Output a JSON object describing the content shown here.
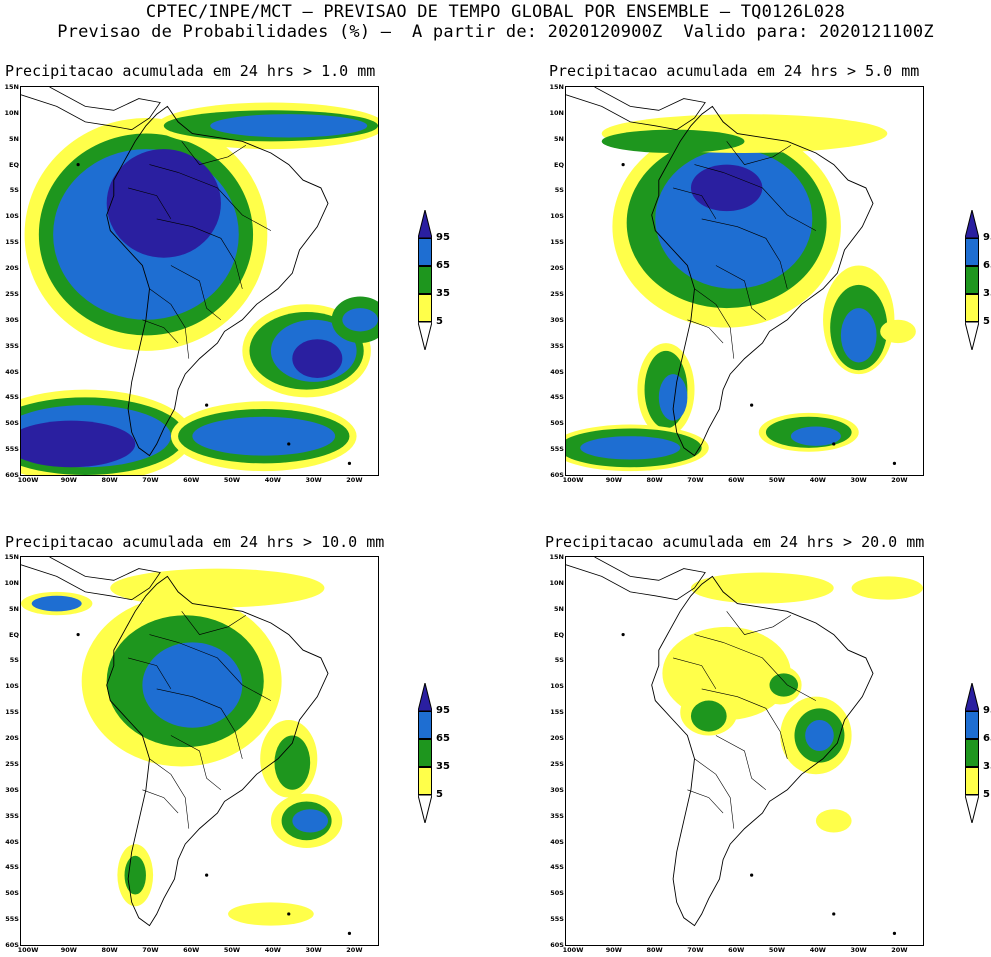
{
  "header": {
    "line1": "CPTEC/INPE/MCT — PREVISAO DE TEMPO GLOBAL POR ENSEMBLE — TQ0126L028",
    "line2": "Previsao de Probabilidades (%) —  A partir de: 2020120900Z  Valido para: 2020121100Z"
  },
  "colors": {
    "c5": "#ffff4a",
    "c35": "#1e961e",
    "c65": "#1e6ed2",
    "c95": "#2a1fa0"
  },
  "y_ticks": [
    "15N",
    "10N",
    "5N",
    "EQ",
    "5S",
    "10S",
    "15S",
    "20S",
    "25S",
    "30S",
    "35S",
    "40S",
    "45S",
    "50S",
    "55S",
    "60S"
  ],
  "x_ticks": [
    "100W",
    "90W",
    "80W",
    "70W",
    "60W",
    "50W",
    "40W",
    "30W",
    "20W"
  ],
  "colorbar": {
    "labels": [
      "95",
      "65",
      "35",
      "5"
    ]
  },
  "panels": [
    {
      "title": "Precipitacao acumulada em 24 hrs > 1.0 mm"
    },
    {
      "title": "Precipitacao acumulada em 24 hrs > 5.0 mm"
    },
    {
      "title": "Precipitacao acumulada em 24 hrs > 10.0 mm"
    },
    {
      "title": "Precipitacao acumulada em 24 hrs > 20.0 mm"
    }
  ]
}
